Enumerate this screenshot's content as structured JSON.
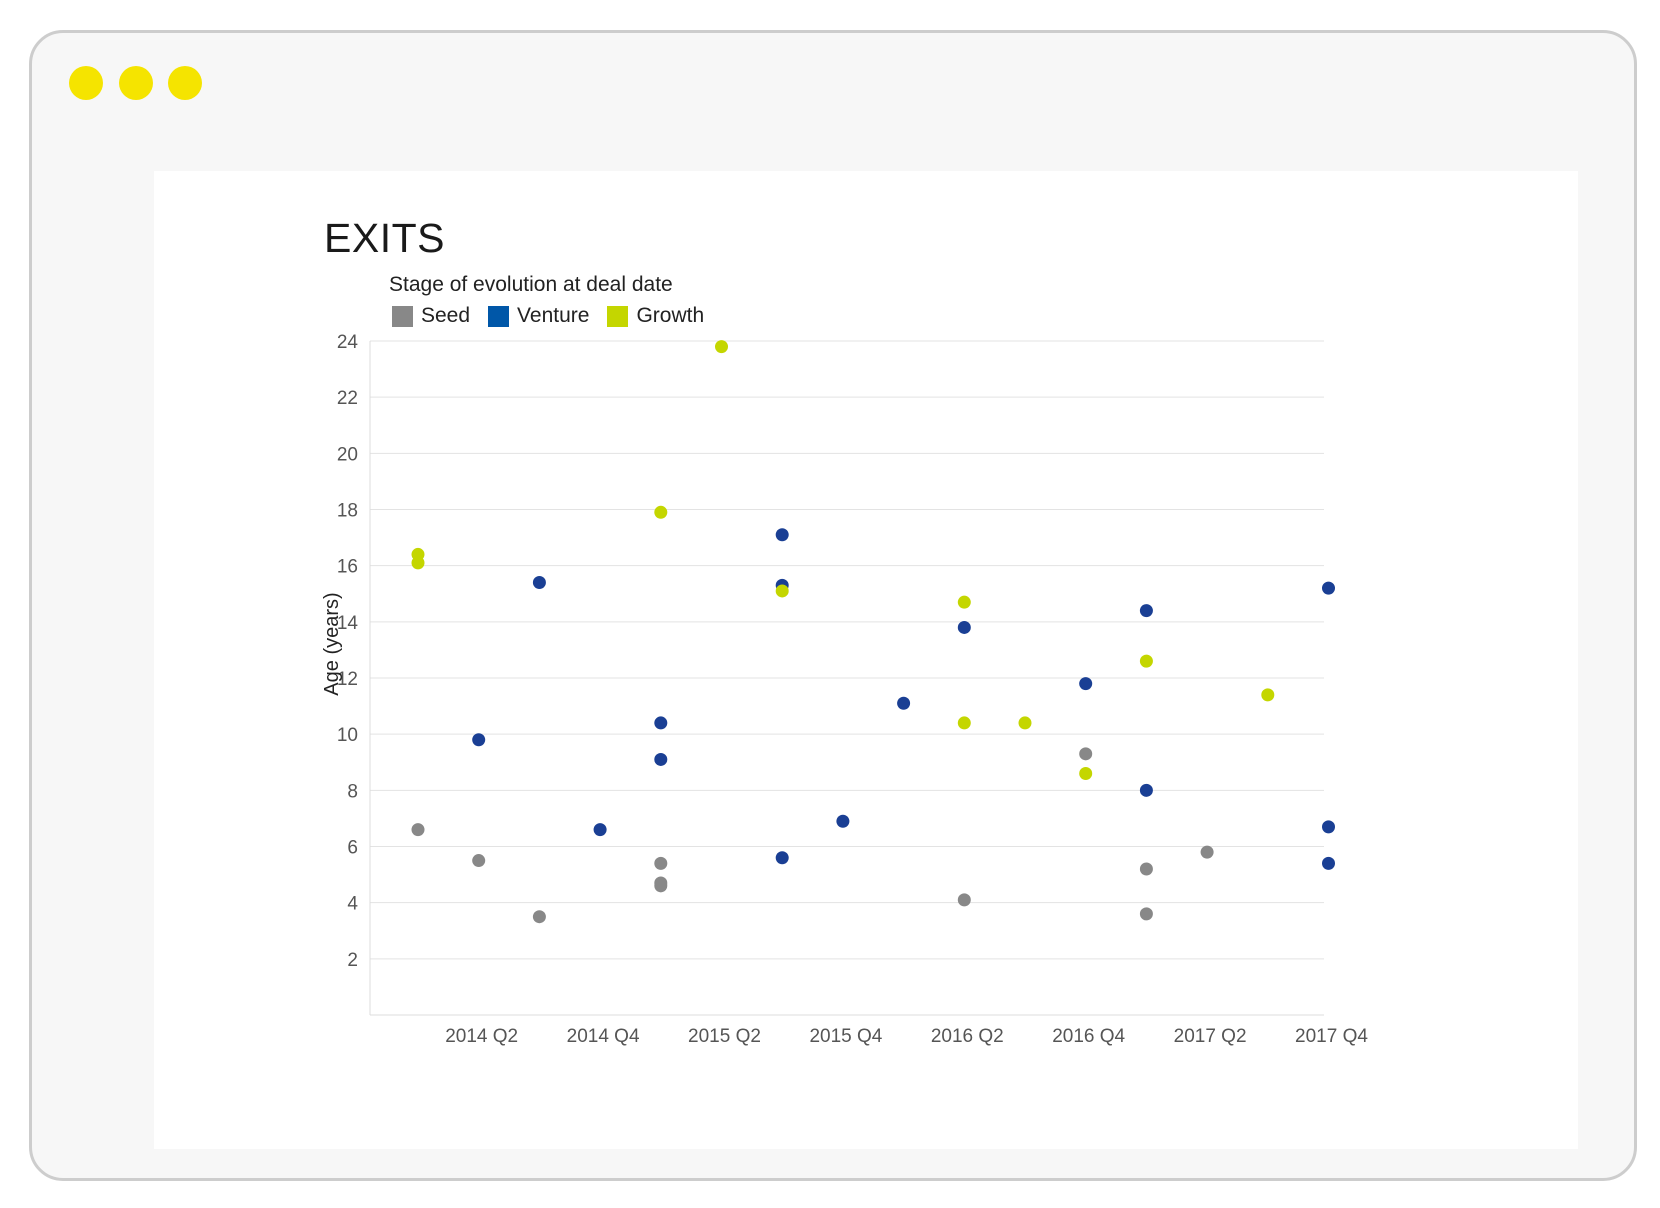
{
  "window": {
    "dot_color": "#f5e400"
  },
  "chart_data": {
    "type": "scatter",
    "title": "EXITS",
    "legend_title": "Stage of evolution at deal date",
    "legend_position": "top-left",
    "xlabel": "",
    "ylabel": "Age (years)",
    "ylim": [
      0,
      24
    ],
    "y_ticks": [
      2,
      4,
      6,
      8,
      10,
      12,
      14,
      16,
      18,
      20,
      22,
      24
    ],
    "x_tick_labels": [
      "2014 Q2",
      "2014 Q4",
      "2015 Q2",
      "2015 Q4",
      "2016 Q2",
      "2016 Q4",
      "2017 Q2",
      "2017 Q4"
    ],
    "x_categories": [
      "2014 Q1",
      "2014 Q2",
      "2014 Q3",
      "2014 Q4",
      "2015 Q1",
      "2015 Q2",
      "2015 Q3",
      "2015 Q4",
      "2016 Q1",
      "2016 Q2",
      "2016 Q3",
      "2016 Q4",
      "2017 Q1",
      "2017 Q2",
      "2017 Q3",
      "2017 Q4"
    ],
    "grid": true,
    "series": [
      {
        "name": "Seed",
        "color": "#888888",
        "points": [
          {
            "x": "2014 Q1",
            "y": 6.6
          },
          {
            "x": "2014 Q2",
            "y": 5.5
          },
          {
            "x": "2014 Q3",
            "y": 3.5
          },
          {
            "x": "2015 Q1",
            "y": 5.4
          },
          {
            "x": "2015 Q1",
            "y": 4.7
          },
          {
            "x": "2015 Q1",
            "y": 4.6
          },
          {
            "x": "2016 Q2",
            "y": 4.1
          },
          {
            "x": "2016 Q4",
            "y": 9.3
          },
          {
            "x": "2017 Q1",
            "y": 5.2
          },
          {
            "x": "2017 Q1",
            "y": 3.6
          },
          {
            "x": "2017 Q2",
            "y": 5.8
          }
        ]
      },
      {
        "name": "Venture",
        "color": "#1a3f94",
        "swatch": "#0057a8",
        "points": [
          {
            "x": "2014 Q2",
            "y": 9.8
          },
          {
            "x": "2014 Q3",
            "y": 15.4
          },
          {
            "x": "2014 Q4",
            "y": 6.6
          },
          {
            "x": "2015 Q1",
            "y": 10.4
          },
          {
            "x": "2015 Q1",
            "y": 9.1
          },
          {
            "x": "2015 Q3",
            "y": 17.1
          },
          {
            "x": "2015 Q3",
            "y": 15.3
          },
          {
            "x": "2015 Q3",
            "y": 5.6
          },
          {
            "x": "2015 Q4",
            "y": 6.9
          },
          {
            "x": "2016 Q1",
            "y": 11.1
          },
          {
            "x": "2016 Q2",
            "y": 13.8
          },
          {
            "x": "2016 Q4",
            "y": 11.8
          },
          {
            "x": "2017 Q1",
            "y": 14.4
          },
          {
            "x": "2017 Q1",
            "y": 8.0
          },
          {
            "x": "2017 Q4",
            "y": 15.2
          },
          {
            "x": "2017 Q4",
            "y": 6.7
          },
          {
            "x": "2017 Q4",
            "y": 5.4
          }
        ]
      },
      {
        "name": "Growth",
        "color": "#c4d600",
        "points": [
          {
            "x": "2014 Q1",
            "y": 16.4
          },
          {
            "x": "2014 Q1",
            "y": 16.1
          },
          {
            "x": "2015 Q1",
            "y": 17.9
          },
          {
            "x": "2015 Q2",
            "y": 23.8
          },
          {
            "x": "2015 Q3",
            "y": 15.1
          },
          {
            "x": "2016 Q2",
            "y": 14.7
          },
          {
            "x": "2016 Q2",
            "y": 10.4
          },
          {
            "x": "2016 Q3",
            "y": 10.4
          },
          {
            "x": "2016 Q4",
            "y": 8.6
          },
          {
            "x": "2017 Q1",
            "y": 12.6
          },
          {
            "x": "2017 Q3",
            "y": 11.4
          }
        ]
      }
    ]
  }
}
